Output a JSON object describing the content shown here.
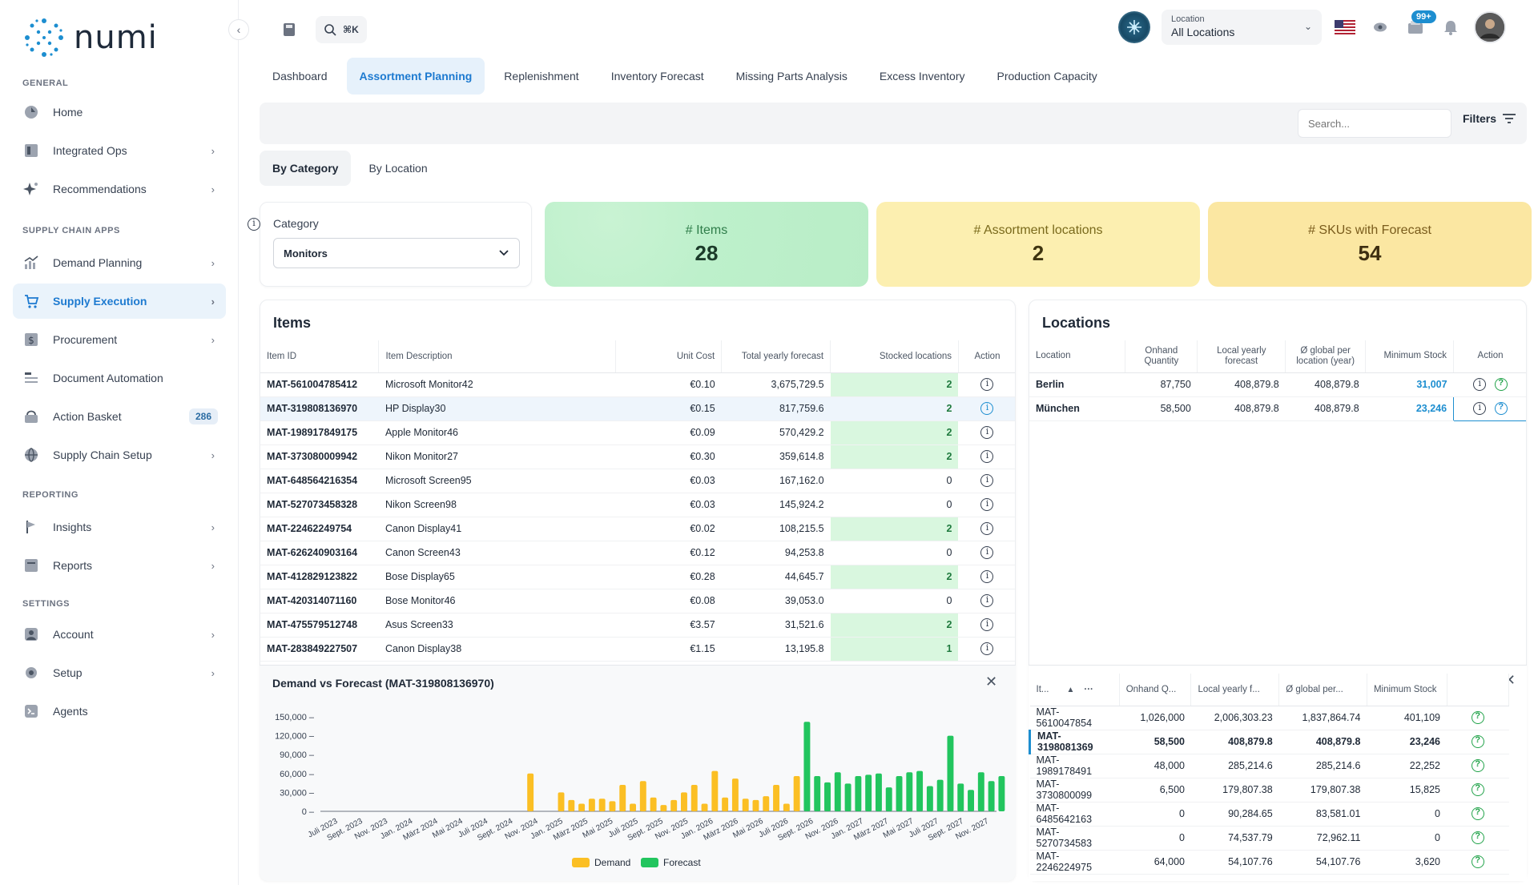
{
  "app": {
    "logo_text": "numi"
  },
  "sidebar": {
    "sections": [
      {
        "label": "GENERAL",
        "items": [
          {
            "label": "Home",
            "icon": "home-icon",
            "chevron": false
          },
          {
            "label": "Integrated Ops",
            "icon": "ops-icon",
            "chevron": true
          },
          {
            "label": "Recommendations",
            "icon": "sparkle-icon",
            "chevron": true
          }
        ]
      },
      {
        "label": "SUPPLY CHAIN APPS",
        "items": [
          {
            "label": "Demand Planning",
            "icon": "chart-icon",
            "chevron": true
          },
          {
            "label": "Supply Execution",
            "icon": "cart-icon",
            "chevron": true,
            "active": true
          },
          {
            "label": "Procurement",
            "icon": "dollar-doc-icon",
            "chevron": true
          },
          {
            "label": "Document Automation",
            "icon": "doc-icon",
            "chevron": false
          },
          {
            "label": "Action Basket",
            "icon": "basket-icon",
            "chevron": false,
            "badge": "286"
          },
          {
            "label": "Supply Chain Setup",
            "icon": "globe-icon",
            "chevron": true
          }
        ]
      },
      {
        "label": "REPORTING",
        "items": [
          {
            "label": "Insights",
            "icon": "flag-icon",
            "chevron": true
          },
          {
            "label": "Reports",
            "icon": "report-icon",
            "chevron": true
          }
        ]
      },
      {
        "label": "SETTINGS",
        "items": [
          {
            "label": "Account",
            "icon": "user-icon",
            "chevron": true
          },
          {
            "label": "Setup",
            "icon": "gear-icon",
            "chevron": true
          },
          {
            "label": "Agents",
            "icon": "terminal-icon",
            "chevron": false
          }
        ]
      }
    ]
  },
  "topbar": {
    "search_shortcut": "⌘K",
    "location_label": "Location",
    "location_value": "All Locations",
    "notif_badge": "99+"
  },
  "tabs": [
    "Dashboard",
    "Assortment Planning",
    "Replenishment",
    "Inventory Forecast",
    "Missing Parts Analysis",
    "Excess Inventory",
    "Production Capacity"
  ],
  "active_tab": "Assortment Planning",
  "filterbar": {
    "search_placeholder": "Search...",
    "filters_label": "Filters"
  },
  "subtabs": [
    "By Category",
    "By Location"
  ],
  "category": {
    "label": "Category",
    "value": "Monitors"
  },
  "kpis": [
    {
      "label": "# Items",
      "value": "28"
    },
    {
      "label": "# Assortment locations",
      "value": "2"
    },
    {
      "label": "# SKUs with Forecast",
      "value": "54"
    }
  ],
  "items_panel": {
    "title": "Items",
    "columns": [
      "Item ID",
      "Item Description",
      "Unit Cost",
      "Total yearly forecast",
      "Stocked locations",
      "Action"
    ],
    "rows": [
      {
        "id": "MAT-561004785412",
        "desc": "Microsoft Monitor42",
        "cost": "€0.10",
        "forecast": "3,675,729.5",
        "stocked": "2"
      },
      {
        "id": "MAT-319808136970",
        "desc": "HP Display30",
        "cost": "€0.15",
        "forecast": "817,759.6",
        "stocked": "2",
        "selected": true
      },
      {
        "id": "MAT-198917849175",
        "desc": "Apple Monitor46",
        "cost": "€0.09",
        "forecast": "570,429.2",
        "stocked": "2"
      },
      {
        "id": "MAT-373080009942",
        "desc": "Nikon Monitor27",
        "cost": "€0.30",
        "forecast": "359,614.8",
        "stocked": "2"
      },
      {
        "id": "MAT-648564216354",
        "desc": "Microsoft Screen95",
        "cost": "€0.03",
        "forecast": "167,162.0",
        "stocked": "0"
      },
      {
        "id": "MAT-527073458328",
        "desc": "Nikon Screen98",
        "cost": "€0.03",
        "forecast": "145,924.2",
        "stocked": "0"
      },
      {
        "id": "MAT-22462249754",
        "desc": "Canon Display41",
        "cost": "€0.02",
        "forecast": "108,215.5",
        "stocked": "2"
      },
      {
        "id": "MAT-626240903164",
        "desc": "Canon Screen43",
        "cost": "€0.12",
        "forecast": "94,253.8",
        "stocked": "0"
      },
      {
        "id": "MAT-412829123822",
        "desc": "Bose Display65",
        "cost": "€0.28",
        "forecast": "44,645.7",
        "stocked": "2"
      },
      {
        "id": "MAT-420314071160",
        "desc": "Bose Monitor46",
        "cost": "€0.08",
        "forecast": "39,053.0",
        "stocked": "0"
      },
      {
        "id": "MAT-475579512748",
        "desc": "Asus Screen33",
        "cost": "€3.57",
        "forecast": "31,521.6",
        "stocked": "2"
      },
      {
        "id": "MAT-283849227507",
        "desc": "Canon Display38",
        "cost": "€1.15",
        "forecast": "13,195.8",
        "stocked": "1"
      }
    ]
  },
  "locations_panel": {
    "title": "Locations",
    "columns": [
      "Location",
      "Onhand Quantity",
      "Local yearly forecast",
      "Ø global per location (year)",
      "Minimum Stock",
      "Action"
    ],
    "rows": [
      {
        "loc": "Berlin",
        "onhand": "87,750",
        "local": "408,879.8",
        "global": "408,879.8",
        "min": "31,007"
      },
      {
        "loc": "München",
        "onhand": "58,500",
        "local": "408,879.8",
        "global": "408,879.8",
        "min": "23,246"
      }
    ]
  },
  "demand_chart": {
    "title": "Demand vs Forecast (MAT-319808136970)",
    "legend": [
      "Demand",
      "Forecast"
    ]
  },
  "chart_data": {
    "type": "bar",
    "title": "Demand vs Forecast (MAT-319808136970)",
    "ylim": [
      0,
      150000
    ],
    "yticks": [
      "150,000",
      "120,000",
      "90,000",
      "60,000",
      "30,000",
      "0"
    ],
    "x_tick_labels": [
      "Juli 2023",
      "Sept. 2023",
      "Nov. 2023",
      "Jan. 2024",
      "März 2024",
      "Mai 2024",
      "Juli 2024",
      "Sept. 2024",
      "Nov. 2024",
      "Jan. 2025",
      "März 2025",
      "Mai 2025",
      "Juli 2025",
      "Sept. 2025",
      "Nov. 2025",
      "Jan. 2026",
      "März 2026",
      "Mai 2026",
      "Juli 2026",
      "Sept. 2026",
      "Nov. 2026",
      "Jan. 2027",
      "März 2027",
      "Mai 2027",
      "Juli 2027",
      "Sept. 2027",
      "Nov. 2027"
    ],
    "series": [
      {
        "name": "Demand",
        "color": "#fbbf24",
        "values": [
          0,
          0,
          0,
          0,
          0,
          0,
          0,
          0,
          0,
          0,
          0,
          0,
          0,
          0,
          0,
          0,
          0,
          0,
          0,
          0,
          60000,
          0,
          0,
          30000,
          18000,
          12000,
          20000,
          20000,
          16000,
          42000,
          12000,
          48000,
          22000,
          10000,
          18000,
          30000,
          42000,
          12000,
          64000,
          22000,
          52000,
          20000,
          18000,
          24000,
          42000,
          12000,
          56000,
          0,
          0,
          0,
          0,
          0,
          0,
          0,
          0,
          0,
          0,
          0,
          0,
          0,
          0,
          0,
          0,
          0,
          0,
          0
        ]
      },
      {
        "name": "Forecast",
        "color": "#22c55e",
        "values": [
          0,
          0,
          0,
          0,
          0,
          0,
          0,
          0,
          0,
          0,
          0,
          0,
          0,
          0,
          0,
          0,
          0,
          0,
          0,
          0,
          0,
          0,
          0,
          0,
          0,
          0,
          0,
          0,
          0,
          0,
          0,
          0,
          0,
          0,
          0,
          0,
          0,
          0,
          0,
          0,
          0,
          0,
          0,
          0,
          0,
          0,
          0,
          142000,
          56000,
          46000,
          62000,
          44000,
          56000,
          58000,
          60000,
          38000,
          56000,
          62000,
          64000,
          40000,
          50000,
          120000,
          44000,
          34000,
          62000,
          48000,
          56000
        ]
      }
    ]
  },
  "bottom_table": {
    "columns": [
      "It...",
      "Onhand Q...",
      "Local yearly f...",
      "Ø global per...",
      "Minimum Stock"
    ],
    "rows": [
      {
        "id": "MAT-5610047854",
        "onhand": "1,026,000",
        "local": "2,006,303.23",
        "global": "1,837,864.74",
        "min": "401,109"
      },
      {
        "id": "MAT-3198081369",
        "onhand": "58,500",
        "local": "408,879.8",
        "global": "408,879.8",
        "min": "23,246",
        "selected": true
      },
      {
        "id": "MAT-1989178491",
        "onhand": "48,000",
        "local": "285,214.6",
        "global": "285,214.6",
        "min": "22,252"
      },
      {
        "id": "MAT-3730800099",
        "onhand": "6,500",
        "local": "179,807.38",
        "global": "179,807.38",
        "min": "15,825"
      },
      {
        "id": "MAT-6485642163",
        "onhand": "0",
        "local": "90,284.65",
        "global": "83,581.01",
        "min": "0"
      },
      {
        "id": "MAT-5270734583",
        "onhand": "0",
        "local": "74,537.79",
        "global": "72,962.11",
        "min": "0"
      },
      {
        "id": "MAT-2246224975",
        "onhand": "64,000",
        "local": "54,107.76",
        "global": "54,107.76",
        "min": "3,620"
      }
    ]
  }
}
